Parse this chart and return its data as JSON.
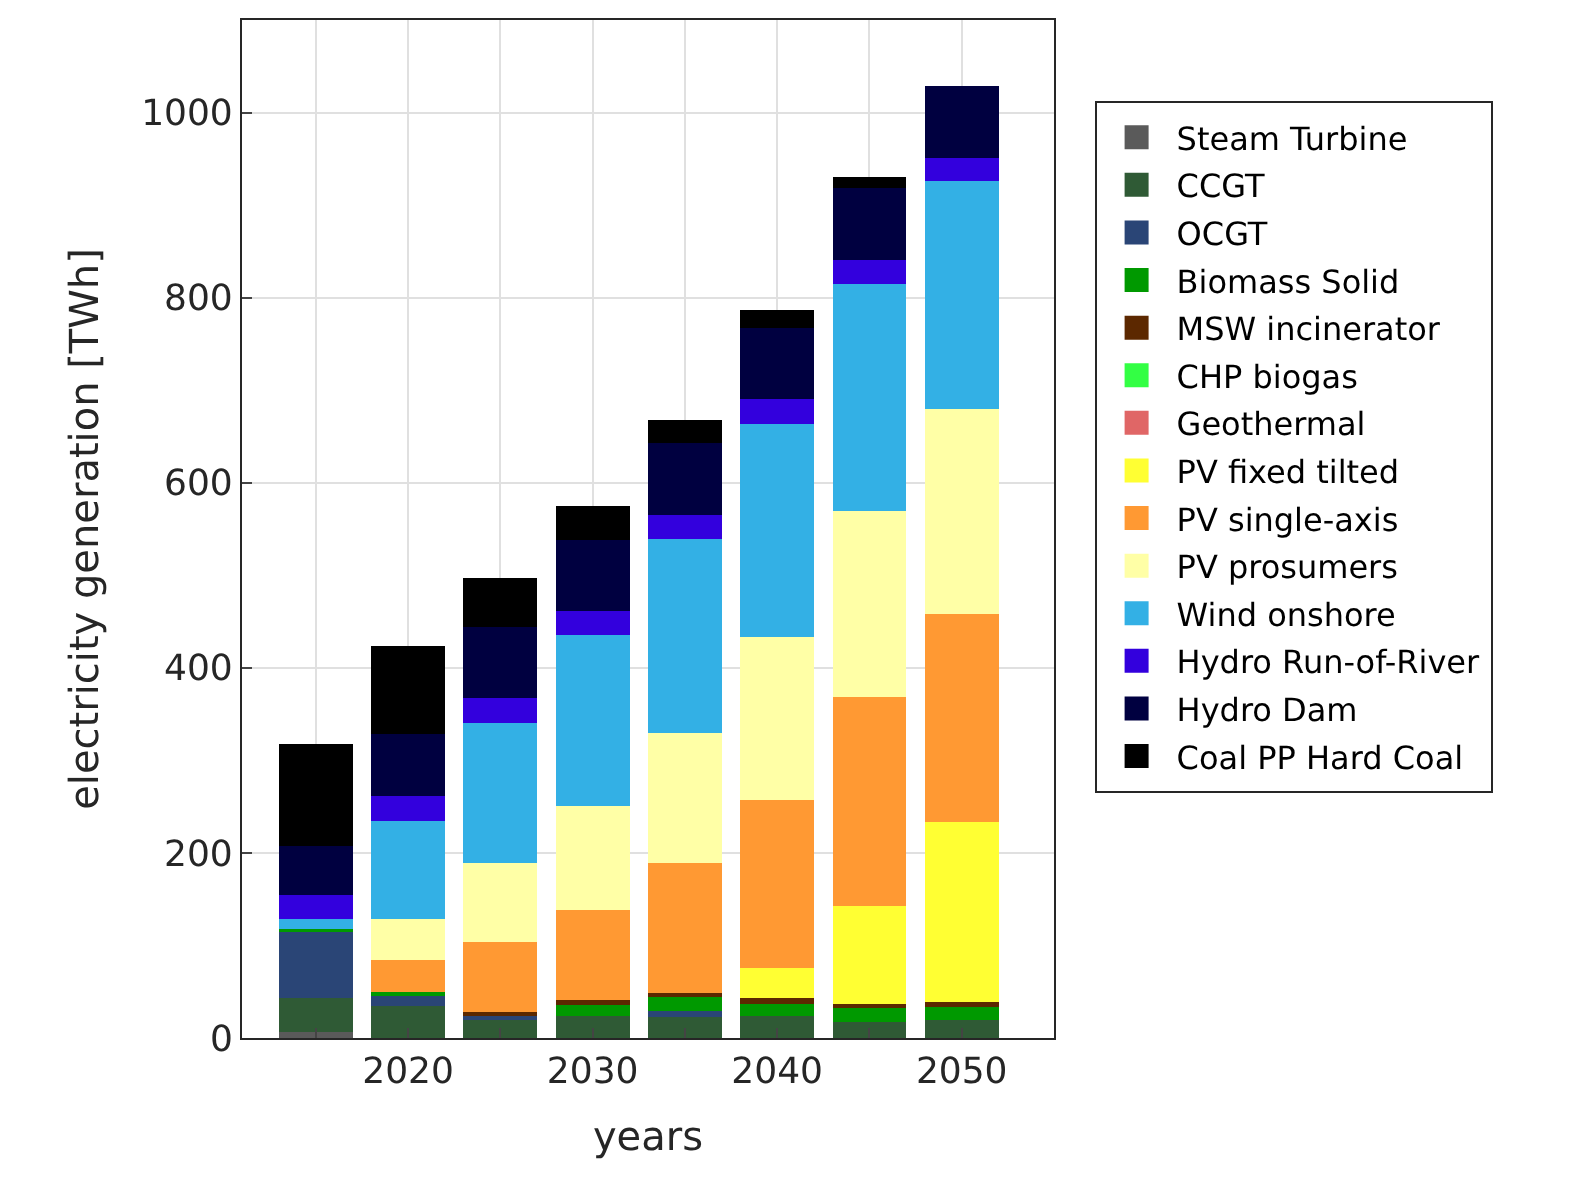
{
  "chart_data": {
    "type": "bar",
    "stacked": true,
    "xlabel": "years",
    "ylabel": "electricity generation [TWh]",
    "x": [
      2015,
      2020,
      2025,
      2030,
      2035,
      2040,
      2045,
      2050
    ],
    "xlim": [
      2011,
      2055
    ],
    "xticks": [
      {
        "value": 2015,
        "label": null
      },
      2020,
      {
        "value": 2025,
        "label": null
      },
      2030,
      {
        "value": 2035,
        "label": null
      },
      2040,
      {
        "value": 2045,
        "label": null
      },
      2050
    ],
    "ylim": [
      0,
      1100
    ],
    "yticks": [
      0,
      200,
      400,
      600,
      800,
      1000
    ],
    "grid": true,
    "legend": "right",
    "series": [
      {
        "name": "Steam Turbine",
        "color": "#5a5a5a",
        "values": [
          7,
          0,
          0,
          0,
          0,
          0,
          0,
          0
        ]
      },
      {
        "name": "CCGT",
        "color": "#2f5a35",
        "values": [
          36,
          35,
          19,
          24,
          23,
          24,
          17,
          19
        ]
      },
      {
        "name": "OCGT",
        "color": "#2a4576",
        "values": [
          73,
          12,
          5,
          null,
          6,
          null,
          0,
          0
        ]
      },
      {
        "name": "Biomass Solid",
        "color": "#009900",
        "values": [
          2,
          3,
          null,
          12,
          15,
          13,
          16,
          15
        ]
      },
      {
        "name": "MSW incinerator",
        "color": "#5c2800",
        "values": [
          0,
          null,
          4,
          5,
          5,
          6,
          4,
          5
        ]
      },
      {
        "name": "CHP biogas",
        "color": "#33ff44",
        "values": [
          0,
          0,
          0,
          0,
          0,
          0,
          0,
          0
        ]
      },
      {
        "name": "Geothermal",
        "color": "#e06666",
        "values": [
          0,
          0,
          0,
          0,
          0,
          0,
          0,
          0
        ]
      },
      {
        "name": "PV fixed tilted",
        "color": "#ffff33",
        "values": [
          0,
          0,
          0,
          0,
          0,
          33,
          106,
          194
        ]
      },
      {
        "name": "PV single-axis",
        "color": "#ff9933",
        "values": [
          0,
          34,
          76,
          97,
          140,
          181,
          226,
          225
        ]
      },
      {
        "name": "PV prosumers",
        "color": "#ffffa6",
        "values": [
          0,
          45,
          85,
          113,
          141,
          176,
          201,
          222
        ]
      },
      {
        "name": "Wind onshore",
        "color": "#33b0e5",
        "values": [
          11,
          106,
          151,
          184,
          209,
          230,
          245,
          246
        ]
      },
      {
        "name": "Hydro Run-of-River",
        "color": "#3300dd",
        "values": [
          26,
          26,
          27,
          26,
          26,
          27,
          26,
          25
        ]
      },
      {
        "name": "Hydro Dam",
        "color": "#000040",
        "values": [
          52,
          67,
          77,
          77,
          78,
          77,
          77,
          78
        ]
      },
      {
        "name": "Coal PP Hard Coal",
        "color": "#000000",
        "values": [
          111,
          96,
          53,
          37,
          25,
          20,
          12,
          0
        ]
      }
    ]
  }
}
